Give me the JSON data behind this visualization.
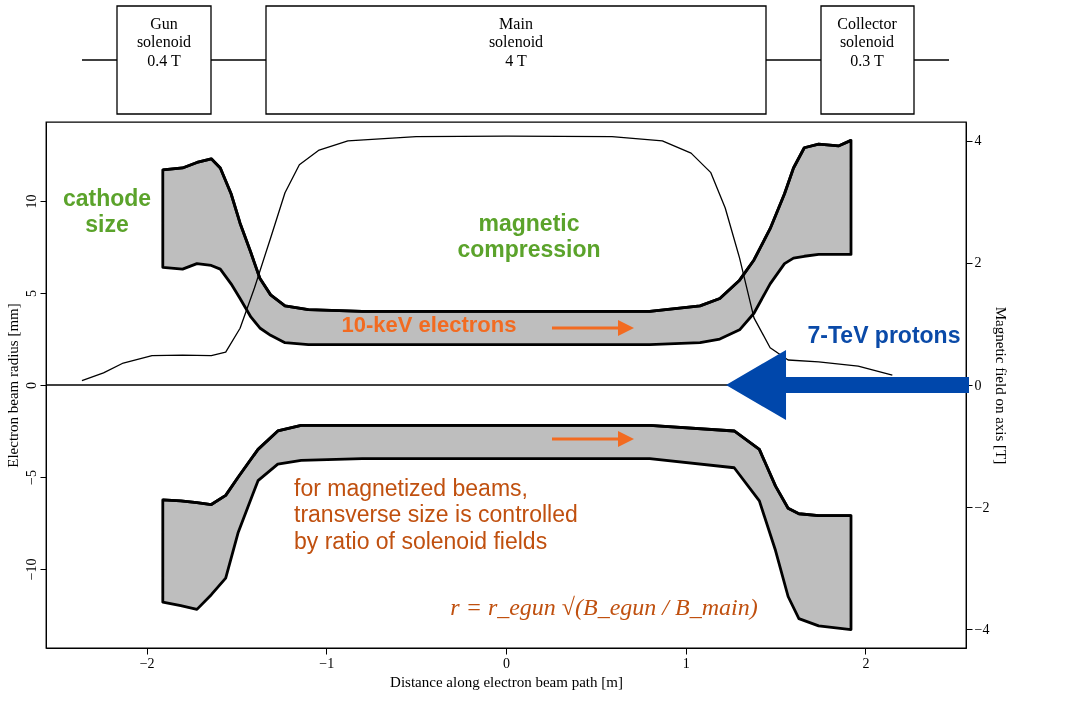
{
  "chart_data": {
    "type": "line",
    "xlabel": "Distance along electron beam path [m]",
    "ylabel": "Electron beam radius [mm]",
    "y2label": "Magnetic field on axis [T]",
    "xlim": [
      -2.56,
      2.56
    ],
    "xticks": [
      -2,
      -1,
      0,
      1,
      2
    ],
    "ylim": [
      -14.3,
      14.3
    ],
    "yticks": [
      -10,
      -5,
      0,
      5,
      10
    ],
    "y2lim": [
      -4.31,
      4.31
    ],
    "y2ticks": [
      -4,
      -2,
      0,
      2,
      4
    ],
    "grid": false,
    "ref_lines": [
      {
        "axis": "y",
        "value": 0,
        "color": "#000000"
      }
    ],
    "annotations": [
      "Gun\nsolenoid\n0.4  T",
      "Main\nsolenoid\n4  T",
      "Collector\nsolenoid\n0.3  T",
      "cathode\nsize",
      "magnetic\ncompression",
      "10-keV electrons",
      "7-TeV protons",
      "for magnetized beams,\ntransverse size is controlled\nby ratio of solenoid fields",
      "r = r_egun √(B_egun / B_main)"
    ],
    "series": [
      {
        "type": "line",
        "color": "#000000",
        "x": [
          -1.91,
          -1.8,
          -1.72,
          -1.64,
          -1.59,
          -1.53,
          -1.48,
          -1.42,
          -1.37,
          -1.31,
          -1.23,
          -1.1,
          -0.8,
          0,
          0.8,
          1.08,
          1.19,
          1.3,
          1.38,
          1.47,
          1.55,
          1.6,
          1.66,
          1.74,
          1.85,
          1.92
        ],
        "values": [
          11.7,
          11.8,
          12.1,
          12.3,
          11.8,
          10.4,
          8.8,
          7.2,
          5.8,
          4.9,
          4.3,
          4.1,
          4.0,
          4.0,
          4.0,
          4.3,
          4.7,
          5.7,
          6.8,
          8.5,
          10.4,
          11.8,
          12.9,
          13.1,
          13.0,
          13.3
        ],
        "upper": [
          11.7,
          11.8,
          12.1,
          12.3,
          11.8,
          10.4,
          8.8,
          7.2,
          5.8,
          4.9,
          4.3,
          4.1,
          4.0,
          4.0,
          4.0,
          4.3,
          4.7,
          5.7,
          6.8,
          8.5,
          10.4,
          11.8,
          12.9,
          13.1,
          13.0,
          13.3
        ],
        "lower": [
          6.4,
          6.3,
          6.6,
          6.5,
          6.3,
          5.5,
          4.7,
          3.7,
          3.1,
          2.7,
          2.3,
          2.2,
          2.2,
          2.2,
          2.2,
          2.3,
          2.5,
          3.0,
          3.9,
          5.5,
          6.6,
          6.9,
          7.0,
          7.1,
          7.1,
          7.1
        ]
      },
      {
        "type": "line",
        "color": "#000000",
        "x": [
          -1.91,
          -1.81,
          -1.72,
          -1.64,
          -1.56,
          -1.49,
          -1.38,
          -1.27,
          -1.14,
          -0.8,
          0,
          0.8,
          1.27,
          1.41,
          1.5,
          1.57,
          1.63,
          1.74,
          1.92
        ],
        "values": [
          -6.25,
          -6.3,
          -6.4,
          -6.5,
          -6.0,
          -5.0,
          -3.5,
          -2.5,
          -2.2,
          -2.2,
          -2.2,
          -2.2,
          -2.5,
          -3.5,
          -5.5,
          -6.7,
          -7.0,
          -7.1,
          -7.1
        ],
        "upper": [
          -6.25,
          -6.3,
          -6.4,
          -6.5,
          -6.0,
          -5.0,
          -3.5,
          -2.5,
          -2.2,
          -2.2,
          -2.2,
          -2.2,
          -2.5,
          -3.5,
          -5.5,
          -6.7,
          -7.0,
          -7.1,
          -7.1
        ],
        "lower": [
          -11.8,
          -12.0,
          -12.2,
          -11.4,
          -10.5,
          -8.0,
          -5.2,
          -4.3,
          -4.1,
          -4.0,
          -4.0,
          -4.0,
          -4.5,
          -6.3,
          -9.0,
          -11.5,
          -12.7,
          -13.1,
          -13.3
        ]
      },
      {
        "type": "line",
        "axis": "y2",
        "color": "#000000",
        "x": [
          -2.36,
          -2.24,
          -2.13,
          -1.97,
          -1.8,
          -1.64,
          -1.56,
          -1.48,
          -1.4,
          -1.31,
          -1.23,
          -1.15,
          -1.04,
          -0.88,
          -0.5,
          0,
          0.59,
          0.87,
          1.03,
          1.14,
          1.22,
          1.3,
          1.38,
          1.47,
          1.57,
          1.74,
          1.96,
          2.15
        ],
        "values": [
          0.07,
          0.2,
          0.36,
          0.48,
          0.49,
          0.48,
          0.54,
          0.93,
          1.59,
          2.41,
          3.15,
          3.61,
          3.85,
          4.0,
          4.07,
          4.08,
          4.07,
          4.0,
          3.8,
          3.48,
          2.9,
          2.08,
          1.1,
          0.61,
          0.41,
          0.38,
          0.31,
          0.16
        ]
      }
    ]
  }
}
